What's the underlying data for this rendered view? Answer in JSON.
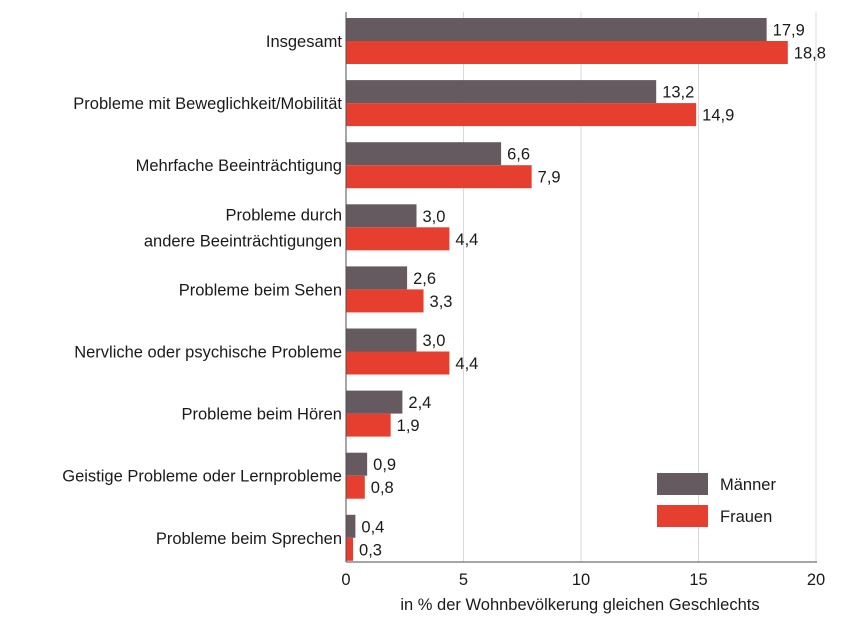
{
  "chart_data": {
    "type": "bar",
    "orientation": "horizontal",
    "title": "",
    "xlabel": "in % der Wohnbevölkerung gleichen Geschlechts",
    "ylabel": "",
    "xlim": [
      0,
      20
    ],
    "xticks": [
      "0",
      "5",
      "10",
      "15",
      "20"
    ],
    "grid": "vertical",
    "legend_position": "bottom-right",
    "categories": [
      [
        "Insgesamt"
      ],
      [
        "Probleme mit Beweglichkeit/Mobilität"
      ],
      [
        "Mehrfache Beeinträchtigung"
      ],
      [
        "Probleme durch",
        "andere Beeinträchtigungen"
      ],
      [
        "Probleme beim Sehen"
      ],
      [
        "Nervliche oder psychische Probleme"
      ],
      [
        "Probleme beim Hören"
      ],
      [
        "Geistige Probleme oder Lernprobleme"
      ],
      [
        "Probleme beim Sprechen"
      ]
    ],
    "series": [
      {
        "name": "Männer",
        "color": "#655a60",
        "values": [
          17.9,
          13.2,
          6.6,
          3.0,
          2.6,
          3.0,
          2.4,
          0.9,
          0.4
        ],
        "labels": [
          "17,9",
          "13,2",
          "6,6",
          "3,0",
          "2,6",
          "3,0",
          "2,4",
          "0,9",
          "0,4"
        ]
      },
      {
        "name": "Frauen",
        "color": "#e63f2f",
        "values": [
          18.8,
          14.9,
          7.9,
          4.4,
          3.3,
          4.4,
          1.9,
          0.8,
          0.3
        ],
        "labels": [
          "18,8",
          "14,9",
          "7,9",
          "4,4",
          "3,3",
          "4,4",
          "1,9",
          "0,8",
          "0,3"
        ]
      }
    ]
  }
}
